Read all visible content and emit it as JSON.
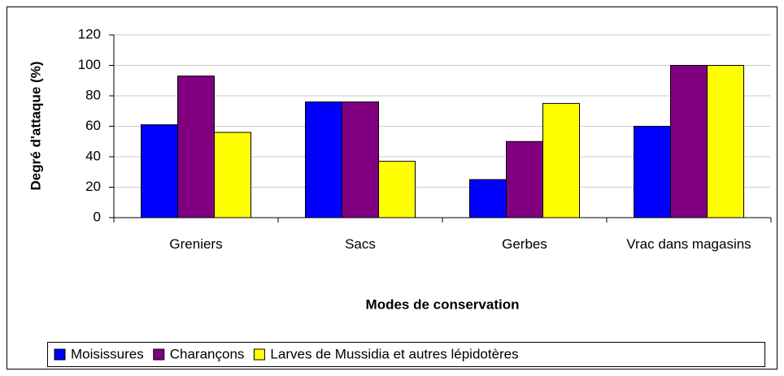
{
  "chart_data": {
    "type": "bar",
    "x_label": "Modes de conservation",
    "y_label": "Degré d'attaque (%)",
    "categories": [
      "Greniers",
      "Sacs",
      "Gerbes",
      "Vrac dans magasins"
    ],
    "series": [
      {
        "name": "Moisissures",
        "color": "#0000ff",
        "values": [
          61,
          76,
          25,
          60
        ]
      },
      {
        "name": "Charançons",
        "color": "#800080",
        "values": [
          93,
          76,
          50,
          100
        ]
      },
      {
        "name": "Larves de Mussidia et autres lépidotères",
        "color": "#ffff00",
        "values": [
          56,
          37,
          75,
          100
        ]
      }
    ],
    "ylim": [
      0,
      120
    ],
    "yticks": [
      0,
      20,
      40,
      60,
      80,
      100,
      120
    ],
    "grid": true,
    "legend": "bottom"
  }
}
